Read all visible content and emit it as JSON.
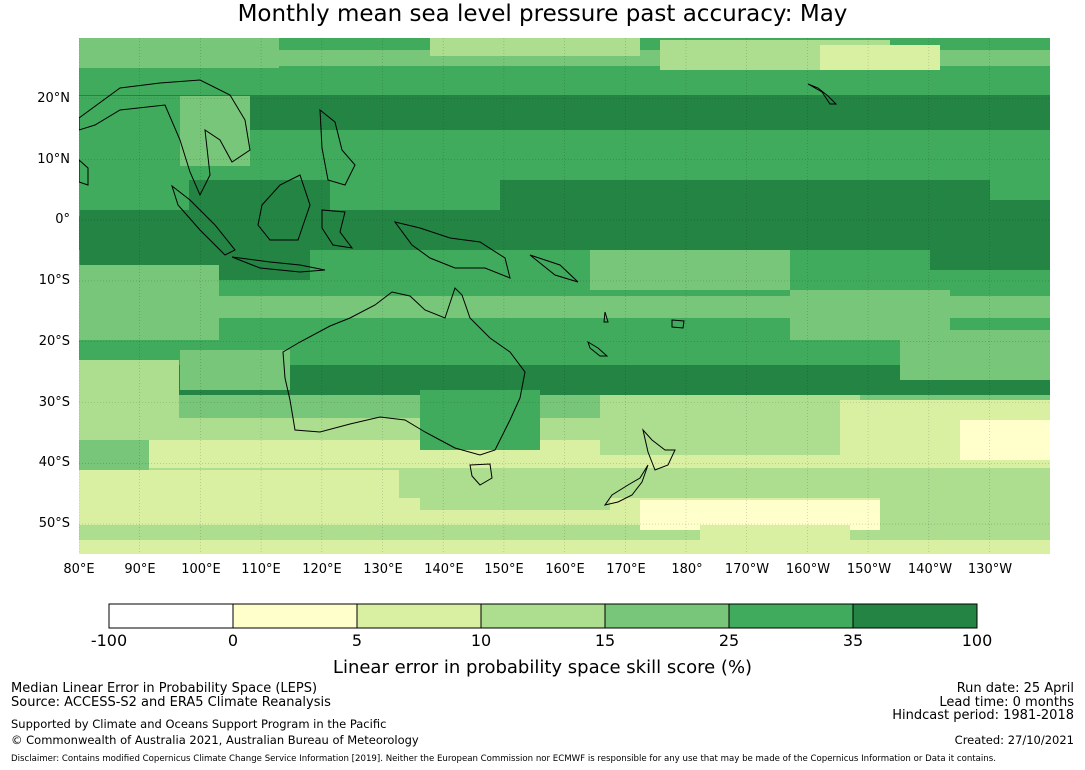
{
  "title": "Monthly mean sea level pressure past accuracy: May",
  "map": {
    "lat_labels": [
      "20°N",
      "10°N",
      "0°",
      "10°S",
      "20°S",
      "30°S",
      "40°S",
      "50°S"
    ],
    "lon_labels": [
      "80°E",
      "90°E",
      "100°E",
      "110°E",
      "120°E",
      "130°E",
      "140°E",
      "150°E",
      "160°E",
      "170°E",
      "180°",
      "170°W",
      "160°W",
      "150°W",
      "140°W",
      "130°W"
    ],
    "grid_lines": true,
    "colors_by_class": [
      "#ffffff",
      "#ffffcc",
      "#d9f0a3",
      "#addd8e",
      "#78c679",
      "#41ab5d",
      "#238443"
    ]
  },
  "colorbar": {
    "labels": [
      "-100",
      "0",
      "5",
      "10",
      "15",
      "25",
      "35",
      "100"
    ],
    "title": "Linear error in probability space skill score (%)"
  },
  "footer": {
    "left_line1": "Median Linear Error in Probability Space (LEPS)",
    "left_line2": "Source: ACCESS-S2 and ERA5 Climate Reanalysis",
    "left_line3": "Supported by Climate and Oceans Support Program in the Pacific",
    "left_line4": "© Commonwealth of Australia 2021, Australian Bureau of Meteorology",
    "right_line1": "Run date: 25 April",
    "right_line2": "Lead time: 0 months",
    "right_line3": "Hindcast period: 1981-2018",
    "right_line4": "Created: 27/10/2021",
    "disclaimer": "Disclaimer: Contains modified Copernicus Climate Change Service Information [2019]. Neither the European Commission nor ECMWF is responsible for any use that may be made of the Copernicus Information or Data it contains."
  }
}
